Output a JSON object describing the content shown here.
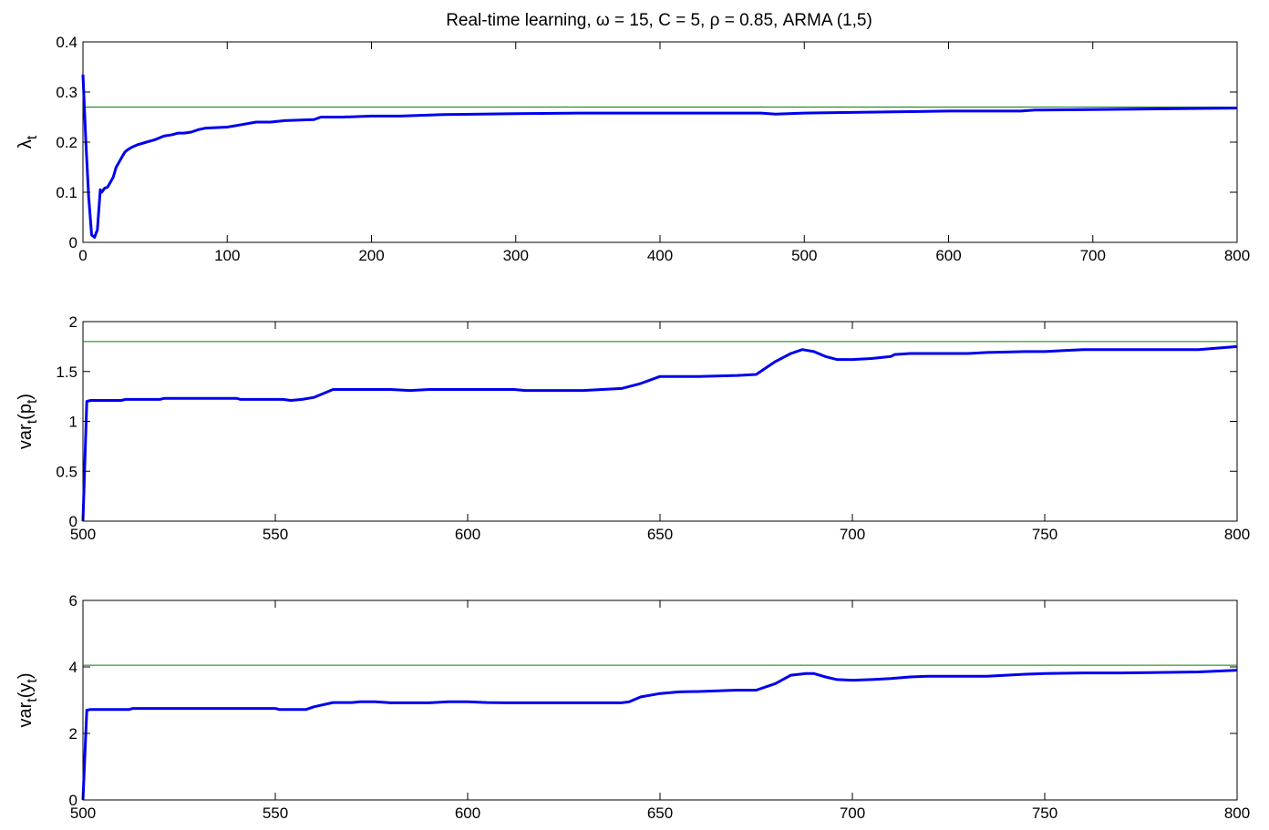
{
  "figure": {
    "title": "Real-time learning, ω = 15, C = 5, ρ = 0.85, ARMA (1,5)"
  },
  "colors": {
    "series": "#0000ee",
    "reference": "#008000",
    "axes": "#000000",
    "background": "#ffffff"
  },
  "chart_data": [
    {
      "type": "line",
      "title": "Real-time learning, ω = 15, C = 5, ρ = 0.85, ARMA (1,5)",
      "ylabel": {
        "base": "λ",
        "sub": "t",
        "tail": ""
      },
      "xlim": [
        0,
        800
      ],
      "ylim": [
        0,
        0.4
      ],
      "xticks": [
        0,
        100,
        200,
        300,
        400,
        500,
        600,
        700,
        800
      ],
      "xtick_labels": [
        "0",
        "100",
        "200",
        "300",
        "400",
        "500",
        "600",
        "700",
        "800"
      ],
      "yticks": [
        0,
        0.1,
        0.2,
        0.3,
        0.4
      ],
      "ytick_labels": [
        "0",
        "0.1",
        "0.2",
        "0.3",
        "0.4"
      ],
      "grid": false,
      "reference_line": 0.27,
      "series": [
        {
          "x": [
            0,
            2,
            4,
            6,
            8,
            10,
            12,
            13,
            15,
            17,
            19,
            21,
            23,
            25,
            27,
            29,
            31,
            34,
            38,
            44,
            50,
            56,
            62,
            66,
            70,
            75,
            80,
            85,
            100,
            110,
            120,
            130,
            140,
            160,
            165,
            180,
            200,
            220,
            250,
            300,
            350,
            355,
            380,
            470,
            480,
            500,
            550,
            600,
            650,
            660,
            700,
            800
          ],
          "y": [
            0.335,
            0.2,
            0.09,
            0.015,
            0.01,
            0.025,
            0.105,
            0.1,
            0.108,
            0.11,
            0.12,
            0.13,
            0.15,
            0.16,
            0.17,
            0.18,
            0.185,
            0.19,
            0.195,
            0.2,
            0.205,
            0.212,
            0.215,
            0.218,
            0.218,
            0.22,
            0.225,
            0.228,
            0.23,
            0.235,
            0.24,
            0.24,
            0.243,
            0.245,
            0.25,
            0.25,
            0.252,
            0.252,
            0.255,
            0.257,
            0.258,
            0.258,
            0.258,
            0.258,
            0.256,
            0.258,
            0.26,
            0.262,
            0.262,
            0.264,
            0.265,
            0.268
          ]
        }
      ]
    },
    {
      "type": "line",
      "ylabel": {
        "base": "var",
        "sub": "t",
        "tail": "(p",
        "sub2": "t",
        "tail2": ")"
      },
      "xlim": [
        500,
        800
      ],
      "ylim": [
        0,
        2
      ],
      "xticks": [
        500,
        550,
        600,
        650,
        700,
        750,
        800
      ],
      "xtick_labels": [
        "500",
        "550",
        "600",
        "650",
        "700",
        "750",
        "800"
      ],
      "yticks": [
        0,
        0.5,
        1,
        1.5,
        2
      ],
      "ytick_labels": [
        "0",
        "0.5",
        "1",
        "1.5",
        "2"
      ],
      "grid": false,
      "reference_line": 1.8,
      "series": [
        {
          "x": [
            500,
            501,
            502,
            510,
            511,
            520,
            521,
            540,
            541,
            552,
            554,
            557,
            560,
            565,
            570,
            580,
            585,
            590,
            612,
            615,
            630,
            640,
            645,
            650,
            660,
            670,
            675,
            680,
            684,
            687,
            690,
            693,
            696,
            700,
            705,
            710,
            711,
            715,
            730,
            735,
            745,
            750,
            755,
            760,
            770,
            790,
            800
          ],
          "y": [
            0,
            1.2,
            1.21,
            1.21,
            1.22,
            1.22,
            1.23,
            1.23,
            1.22,
            1.22,
            1.21,
            1.22,
            1.24,
            1.32,
            1.32,
            1.32,
            1.31,
            1.32,
            1.32,
            1.31,
            1.31,
            1.33,
            1.38,
            1.45,
            1.45,
            1.46,
            1.47,
            1.6,
            1.68,
            1.72,
            1.7,
            1.65,
            1.62,
            1.62,
            1.63,
            1.65,
            1.67,
            1.68,
            1.68,
            1.69,
            1.7,
            1.7,
            1.71,
            1.72,
            1.72,
            1.72,
            1.75
          ]
        }
      ]
    },
    {
      "type": "line",
      "ylabel": {
        "base": "var",
        "sub": "t",
        "tail": "(y",
        "sub2": "t",
        "tail2": ")"
      },
      "xlim": [
        500,
        800
      ],
      "ylim": [
        0,
        6
      ],
      "xticks": [
        500,
        550,
        600,
        650,
        700,
        750,
        800
      ],
      "xtick_labels": [
        "500",
        "550",
        "600",
        "650",
        "700",
        "750",
        "800"
      ],
      "yticks": [
        0,
        2,
        4,
        6
      ],
      "ytick_labels": [
        "0",
        "2",
        "4",
        "6"
      ],
      "grid": false,
      "reference_line": 4.05,
      "series": [
        {
          "x": [
            500,
            501,
            502,
            512,
            513,
            550,
            551,
            558,
            560,
            565,
            570,
            572,
            576,
            580,
            590,
            595,
            600,
            605,
            610,
            640,
            642,
            645,
            650,
            655,
            660,
            665,
            670,
            675,
            680,
            684,
            688,
            690,
            693,
            696,
            700,
            705,
            710,
            715,
            720,
            735,
            740,
            745,
            750,
            760,
            770,
            790,
            800
          ],
          "y": [
            0,
            2.7,
            2.72,
            2.72,
            2.75,
            2.75,
            2.72,
            2.72,
            2.8,
            2.93,
            2.93,
            2.95,
            2.95,
            2.92,
            2.92,
            2.95,
            2.95,
            2.93,
            2.92,
            2.92,
            2.95,
            3.1,
            3.2,
            3.25,
            3.26,
            3.28,
            3.3,
            3.3,
            3.5,
            3.75,
            3.8,
            3.8,
            3.7,
            3.62,
            3.6,
            3.62,
            3.65,
            3.7,
            3.72,
            3.72,
            3.75,
            3.78,
            3.8,
            3.82,
            3.82,
            3.85,
            3.9
          ]
        }
      ]
    }
  ]
}
